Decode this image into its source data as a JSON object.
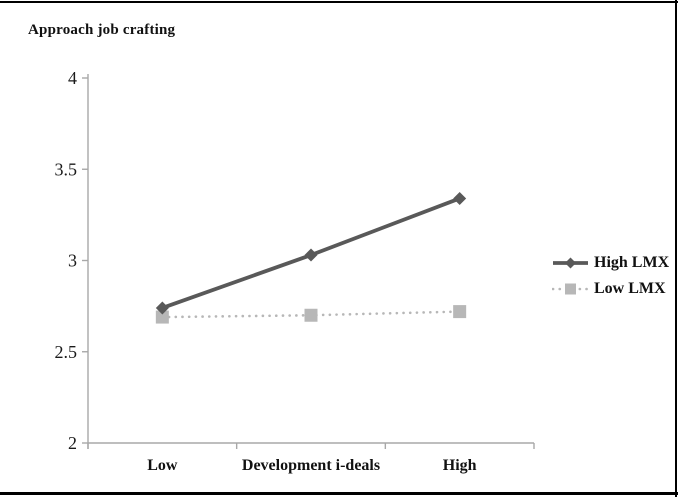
{
  "figure": {
    "title": "Approach job crafting",
    "colors": {
      "rule": "#000000",
      "axis": "#a8a8a8",
      "tick_text": "#1a1a1a",
      "category_text": "#111111"
    }
  },
  "chart_data": {
    "type": "line",
    "title": "Approach job crafting",
    "xlabel": "",
    "ylabel": "Approach job crafting",
    "categories": [
      "Low",
      "Development i-deals",
      "High"
    ],
    "ylim": [
      2,
      4
    ],
    "y_ticks": [
      4,
      3.5,
      3,
      2.5,
      2
    ],
    "y_tick_labels": [
      "4",
      "3.5",
      "3",
      "2.5",
      "2"
    ],
    "grid": false,
    "legend_position": "right",
    "series": [
      {
        "name": "High LMX",
        "values": [
          2.74,
          3.03,
          3.34
        ],
        "color": "#595959",
        "marker": "diamond",
        "line_style": "solid"
      },
      {
        "name": "Low LMX",
        "values": [
          2.69,
          2.7,
          2.72
        ],
        "color": "#b7b7b7",
        "marker": "square",
        "line_style": "dotted"
      }
    ]
  }
}
